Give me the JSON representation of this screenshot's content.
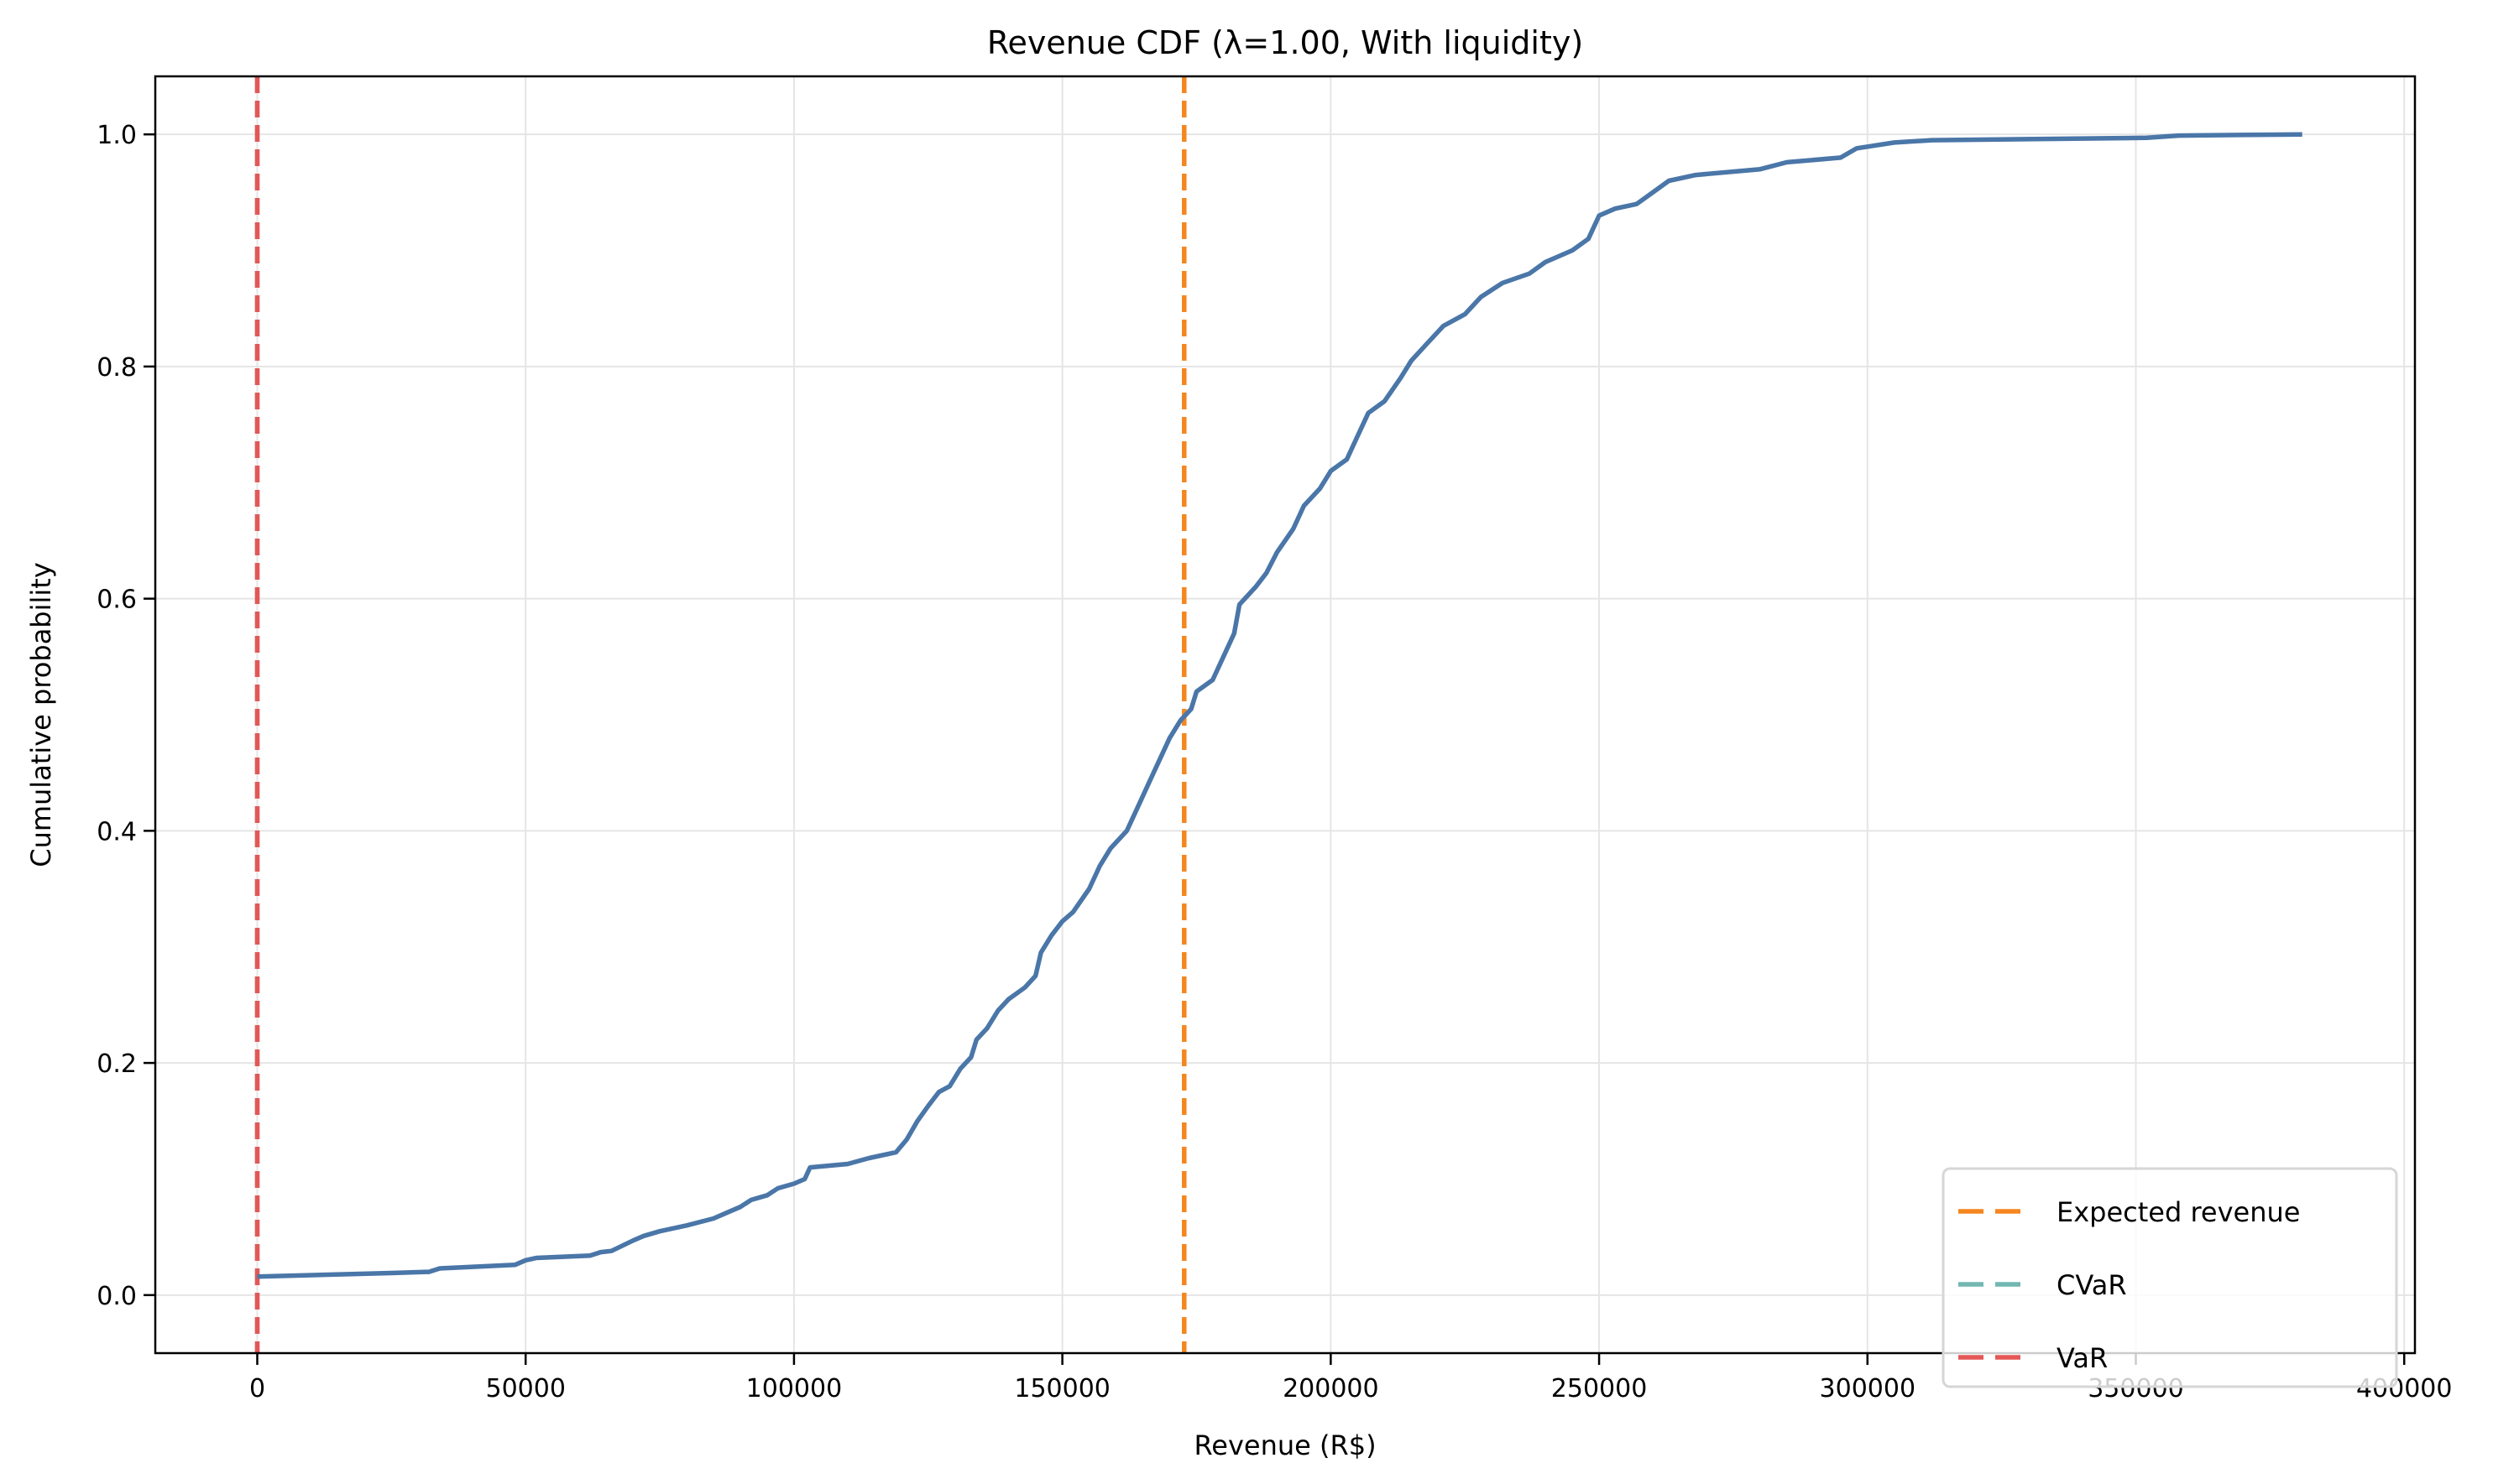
{
  "chart_data": {
    "type": "line",
    "title": "Revenue CDF (λ=1.00, With liquidity)",
    "xlabel": "Revenue (R$)",
    "ylabel": "Cumulative probability",
    "xlim": [
      -19000,
      402000
    ],
    "ylim": [
      -0.05,
      1.05
    ],
    "xticks": [
      0,
      50000,
      100000,
      150000,
      200000,
      250000,
      300000,
      350000,
      400000
    ],
    "xtick_labels": [
      "0",
      "50000",
      "100000",
      "150000",
      "200000",
      "250000",
      "300000",
      "350000",
      "400000"
    ],
    "yticks": [
      0.0,
      0.2,
      0.4,
      0.6,
      0.8,
      1.0
    ],
    "ytick_labels": [
      "0.0",
      "0.2",
      "0.4",
      "0.6",
      "0.8",
      "1.0"
    ],
    "grid": true,
    "legend_position": "lower-right",
    "series": [
      {
        "color": "#4a76a8",
        "x": [
          0,
          25000,
          32000,
          34000,
          48000,
          50000,
          52000,
          62000,
          64000,
          66000,
          70000,
          72000,
          75000,
          78000,
          80000,
          85000,
          88000,
          90000,
          92000,
          95000,
          97000,
          100000,
          102000,
          103000,
          110000,
          114000,
          119000,
          121000,
          123000,
          125000,
          127000,
          129000,
          131000,
          133000,
          134000,
          136000,
          138000,
          140000,
          143000,
          145000,
          146000,
          148000,
          150000,
          152000,
          155000,
          157000,
          159000,
          162000,
          164000,
          166000,
          168000,
          170000,
          172000,
          174000,
          175000,
          178000,
          180000,
          182000,
          183000,
          186000,
          188000,
          190000,
          193000,
          195000,
          198000,
          200000,
          203000,
          205000,
          207000,
          210000,
          213000,
          215000,
          218000,
          221000,
          225000,
          228000,
          232000,
          237000,
          240000,
          245000,
          248000,
          250000,
          253000,
          257000,
          260000,
          263000,
          268000,
          280000,
          285000,
          295000,
          298000,
          305000,
          312000,
          352000,
          358000,
          381000
        ],
        "y": [
          0.016,
          0.019,
          0.02,
          0.023,
          0.026,
          0.03,
          0.032,
          0.034,
          0.037,
          0.038,
          0.047,
          0.051,
          0.055,
          0.058,
          0.06,
          0.066,
          0.072,
          0.076,
          0.082,
          0.086,
          0.092,
          0.096,
          0.1,
          0.11,
          0.113,
          0.118,
          0.123,
          0.134,
          0.15,
          0.163,
          0.175,
          0.18,
          0.195,
          0.205,
          0.22,
          0.23,
          0.245,
          0.255,
          0.265,
          0.275,
          0.295,
          0.31,
          0.322,
          0.33,
          0.35,
          0.37,
          0.385,
          0.4,
          0.42,
          0.44,
          0.46,
          0.48,
          0.495,
          0.505,
          0.52,
          0.53,
          0.55,
          0.57,
          0.595,
          0.61,
          0.622,
          0.64,
          0.66,
          0.68,
          0.695,
          0.71,
          0.72,
          0.74,
          0.76,
          0.77,
          0.79,
          0.805,
          0.82,
          0.835,
          0.845,
          0.86,
          0.872,
          0.88,
          0.89,
          0.9,
          0.91,
          0.93,
          0.936,
          0.94,
          0.95,
          0.96,
          0.965,
          0.97,
          0.976,
          0.98,
          0.988,
          0.993,
          0.995,
          0.997,
          0.999,
          1.0
        ]
      }
    ],
    "vlines": [
      {
        "name": "Expected revenue",
        "x": 172700,
        "color": "#f5861f",
        "style": "dashed"
      },
      {
        "name": "CVaR",
        "x": 0,
        "color": "#72b7b2",
        "style": "dashed"
      },
      {
        "name": "VaR",
        "x": 0,
        "color": "#e45756",
        "style": "dashed"
      }
    ],
    "legend": [
      "Expected revenue",
      "CVaR",
      "VaR"
    ]
  }
}
